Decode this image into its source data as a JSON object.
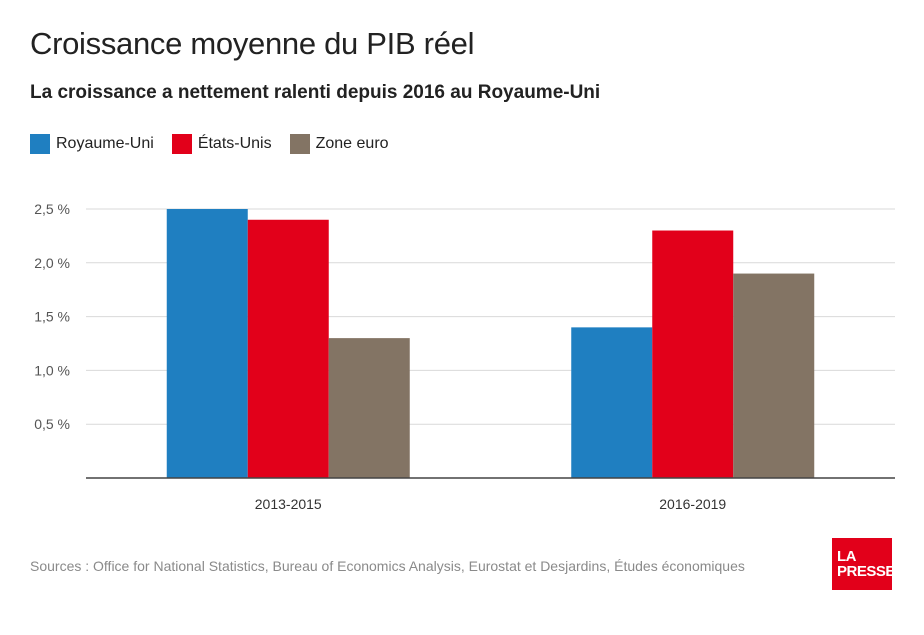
{
  "header": {
    "title": "Croissance moyenne du PIB réel",
    "subtitle": "La croissance a nettement ralenti depuis 2016 au Royaume-Uni"
  },
  "chart_data": {
    "type": "bar",
    "categories": [
      "2013-2015",
      "2016-2019"
    ],
    "series": [
      {
        "name": "Royaume-Uni",
        "values": [
          2.5,
          1.4
        ],
        "color": "#1f7fc1"
      },
      {
        "name": "États-Unis",
        "values": [
          2.4,
          2.3
        ],
        "color": "#e2001a"
      },
      {
        "name": "Zone euro",
        "values": [
          1.3,
          1.9
        ],
        "color": "#837464"
      }
    ],
    "yticks": [
      0.5,
      1.0,
      1.5,
      2.0,
      2.5
    ],
    "ytick_labels": [
      "0,5 %",
      "1,0 %",
      "1,5 %",
      "2,0 %",
      "2,5 %"
    ],
    "ylim": [
      0,
      2.5
    ],
    "grid": true,
    "legend_position": "top-left"
  },
  "footer": {
    "source": "Sources : Office for National Statistics, Bureau of Economics Analysis, Eurostat et Desjardins, Études économiques",
    "logo_line1": "LA",
    "logo_line2": "PRESSE"
  }
}
